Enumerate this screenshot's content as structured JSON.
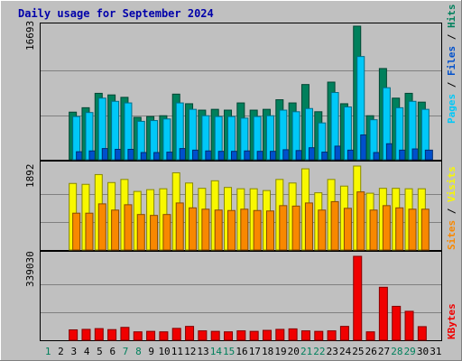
{
  "chart_data": {
    "type": "bar",
    "title": "Daily usage for September 2024",
    "categories": [
      "1",
      "2",
      "3",
      "4",
      "5",
      "6",
      "7",
      "8",
      "9",
      "10",
      "11",
      "12",
      "13",
      "14",
      "15",
      "16",
      "17",
      "18",
      "19",
      "20",
      "21",
      "22",
      "23",
      "24",
      "25",
      "26",
      "27",
      "28",
      "29",
      "30",
      "31"
    ],
    "weekend_days": [
      "1",
      "7",
      "8",
      "14",
      "15",
      "21",
      "22",
      "28",
      "29"
    ],
    "panels": [
      {
        "id": "hits-files-pages",
        "max_label": "16693",
        "ymax": 16693,
        "axis_labels": [
          "Pages",
          "Files",
          "Hits"
        ],
        "series": [
          {
            "name": "Hits",
            "color": "#00805C",
            "values": [
              null,
              null,
              5950,
              6500,
              8300,
              8100,
              7800,
              5300,
              5400,
              5500,
              8200,
              7000,
              6200,
              6300,
              6200,
              7100,
              6200,
              6300,
              7500,
              7100,
              9400,
              6000,
              9700,
              7000,
              16693,
              5500,
              11400,
              7700,
              8300,
              7200,
              null
            ]
          },
          {
            "name": "Files",
            "color": "#00C8F8",
            "values": [
              null,
              null,
              5400,
              5900,
              7700,
              7300,
              7100,
              4800,
              4900,
              5100,
              7100,
              6300,
              5500,
              5400,
              5400,
              5200,
              5400,
              5500,
              6200,
              6000,
              6400,
              4600,
              8400,
              6600,
              12900,
              5000,
              9000,
              6500,
              7300,
              6300,
              null
            ]
          },
          {
            "name": "Pages",
            "color": "#0050CC",
            "values": [
              null,
              null,
              1000,
              1100,
              1400,
              1300,
              1300,
              900,
              900,
              950,
              1400,
              1200,
              1100,
              1050,
              1050,
              1100,
              1050,
              1050,
              1250,
              1150,
              1500,
              950,
              1700,
              1200,
              3100,
              900,
              2000,
              1200,
              1350,
              1200,
              null
            ]
          }
        ]
      },
      {
        "id": "visits-sites",
        "max_label": "1892",
        "ymax": 1892,
        "axis_labels": [
          "Sites",
          "Visits"
        ],
        "series": [
          {
            "name": "Visits",
            "color": "#F8F800",
            "values": [
              null,
              null,
              1500,
              1480,
              1700,
              1520,
              1590,
              1320,
              1360,
              1380,
              1740,
              1510,
              1390,
              1560,
              1410,
              1380,
              1380,
              1340,
              1590,
              1510,
              1830,
              1290,
              1590,
              1440,
              1892,
              1280,
              1390,
              1390,
              1380,
              1380,
              null
            ]
          },
          {
            "name": "Sites",
            "color": "#F88800",
            "values": [
              null,
              null,
              830,
              830,
              1040,
              900,
              1020,
              800,
              780,
              800,
              1060,
              950,
              920,
              900,
              890,
              920,
              890,
              880,
              1000,
              990,
              1060,
              900,
              1090,
              940,
              1310,
              900,
              1000,
              950,
              920,
              920,
              null
            ]
          }
        ]
      },
      {
        "id": "kbytes",
        "max_label": "339030",
        "ymax": 339030,
        "axis_labels": [
          "KBytes"
        ],
        "series": [
          {
            "name": "KBytes",
            "color": "#F00000",
            "values": [
              null,
              null,
              42000,
              44000,
              47000,
              43000,
              52000,
              34000,
              36000,
              34000,
              48000,
              56000,
              38000,
              36000,
              34000,
              38000,
              36000,
              40000,
              44000,
              46000,
              38000,
              36000,
              38000,
              56000,
              339030,
              34000,
              214000,
              137000,
              117000,
              55000,
              null
            ]
          }
        ]
      }
    ]
  }
}
